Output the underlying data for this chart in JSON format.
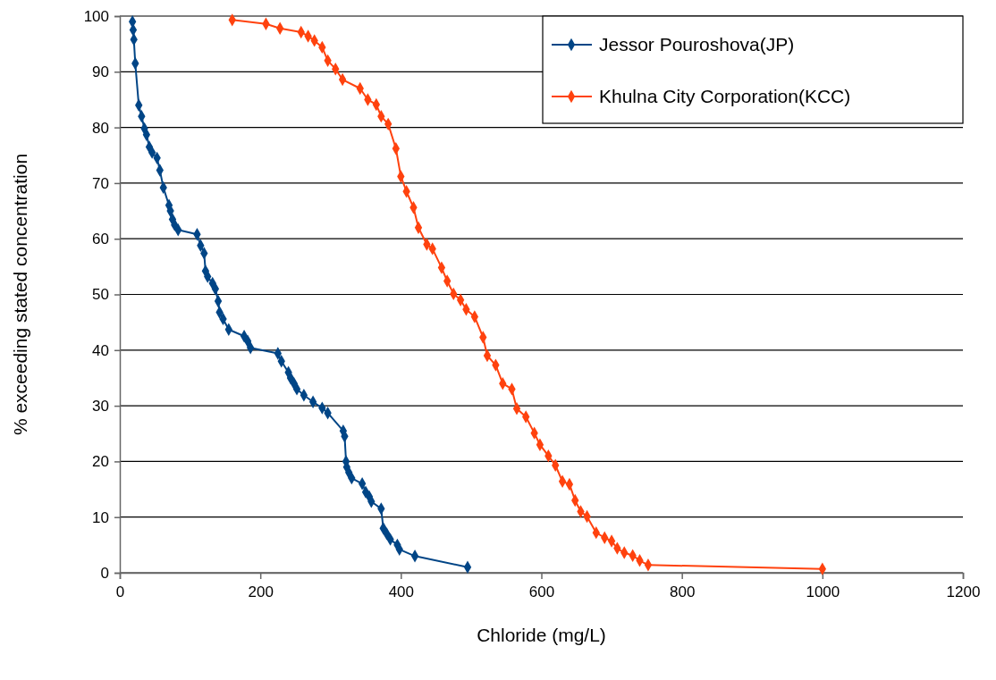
{
  "chart_data": {
    "type": "line",
    "xlabel": "Chloride (mg/L)",
    "ylabel": "% exceeding stated concentration",
    "xlim": [
      0,
      1200
    ],
    "xticks": [
      0,
      200,
      400,
      600,
      800,
      1000,
      1200
    ],
    "ylim": [
      0,
      100
    ],
    "yticks": [
      0,
      10,
      20,
      30,
      40,
      50,
      60,
      70,
      80,
      90,
      100
    ],
    "grid": "y",
    "legend": "top right",
    "marker": "diamond",
    "line_style": "solid",
    "series": [
      {
        "name": "Jessor Pouroshova(JP)",
        "color": "#004586",
        "x": [
          18,
          19,
          20,
          22,
          27,
          31,
          35,
          38,
          42,
          46,
          53,
          57,
          62,
          70,
          72,
          75,
          78,
          83,
          110,
          115,
          120,
          122,
          125,
          132,
          136,
          140,
          142,
          147,
          155,
          177,
          182,
          186,
          225,
          230,
          240,
          243,
          248,
          252,
          262,
          275,
          288,
          296,
          318,
          320,
          322,
          323,
          326,
          330,
          345,
          350,
          355,
          358,
          372,
          375,
          380,
          385,
          395,
          398,
          420,
          495
        ],
        "values": [
          99,
          97.5,
          95.8,
          91.5,
          84,
          82,
          79.8,
          78.7,
          76.5,
          75.5,
          74.5,
          72.3,
          69.2,
          66,
          65,
          63.5,
          62.5,
          61.6,
          60.8,
          58.8,
          57.4,
          54.2,
          53.2,
          52,
          51,
          48.8,
          46.8,
          45.6,
          43.7,
          42.5,
          41.6,
          40.4,
          39.4,
          38,
          36,
          35,
          34,
          33,
          31.9,
          30.7,
          29.6,
          28.7,
          25.5,
          24.5,
          20,
          19,
          18,
          17,
          16,
          14.5,
          13.7,
          12.8,
          11.5,
          8,
          7,
          6,
          5,
          4.2,
          3,
          1
        ]
      },
      {
        "name": "Khulna City Corporation(KCC)",
        "color": "#ff420e",
        "x": [
          160,
          208,
          228,
          258,
          268,
          277,
          288,
          296,
          307,
          317,
          342,
          353,
          365,
          372,
          382,
          393,
          400,
          408,
          418,
          425,
          437,
          445,
          458,
          466,
          475,
          485,
          493,
          505,
          517,
          523,
          535,
          545,
          558,
          565,
          578,
          590,
          598,
          610,
          620,
          630,
          640,
          648,
          656,
          665,
          678,
          690,
          700,
          708,
          718,
          730,
          740,
          752,
          1000
        ],
        "values": [
          99.3,
          98.6,
          97.8,
          97.1,
          96.4,
          95.6,
          94.4,
          92,
          90.5,
          88.6,
          87,
          85,
          84.1,
          82,
          80.6,
          76.2,
          71.2,
          68.5,
          65.6,
          62,
          59,
          58.2,
          54.8,
          52.4,
          50.1,
          49,
          47.3,
          46,
          42.3,
          39,
          37.3,
          34,
          33,
          29.5,
          28,
          25.1,
          23,
          21,
          19.3,
          16.4,
          15.9,
          13,
          11,
          10.1,
          7.2,
          6.3,
          5.7,
          4.4,
          3.6,
          3.1,
          2.2,
          1.4,
          0.7
        ]
      }
    ]
  }
}
